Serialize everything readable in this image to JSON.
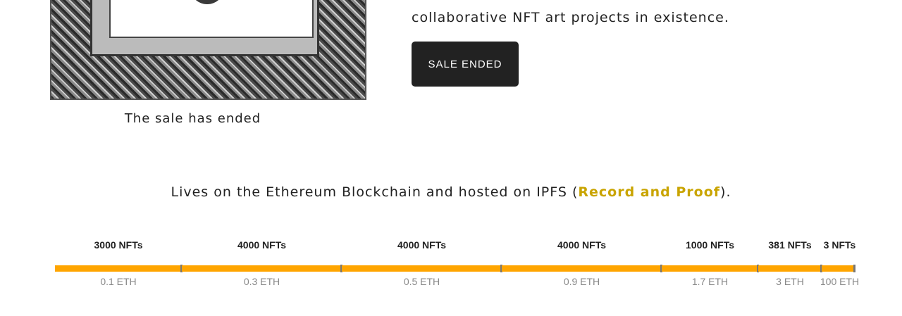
{
  "hero": {
    "description_line": "collaborative NFT art projects in existence.",
    "button_label": "SALE ENDED",
    "caption": "The sale has ended"
  },
  "lives": {
    "prefix": "Lives on the Ethereum Blockchain and hosted on IPFS (",
    "link": "Record and Proof",
    "suffix": ")."
  },
  "tiers": [
    {
      "nfts": "3000 NFTs",
      "price": "0.1 ETH"
    },
    {
      "nfts": "4000 NFTs",
      "price": "0.3 ETH"
    },
    {
      "nfts": "4000 NFTs",
      "price": "0.5 ETH"
    },
    {
      "nfts": "4000 NFTs",
      "price": "0.9 ETH"
    },
    {
      "nfts": "1000 NFTs",
      "price": "1.7 ETH"
    },
    {
      "nfts": "381 NFTs",
      "price": "3 ETH"
    },
    {
      "nfts": "3 NFTs",
      "price": "100 ETH"
    }
  ],
  "colors": {
    "bar": "#ffa500",
    "link": "#c9a400",
    "button": "#222222"
  }
}
